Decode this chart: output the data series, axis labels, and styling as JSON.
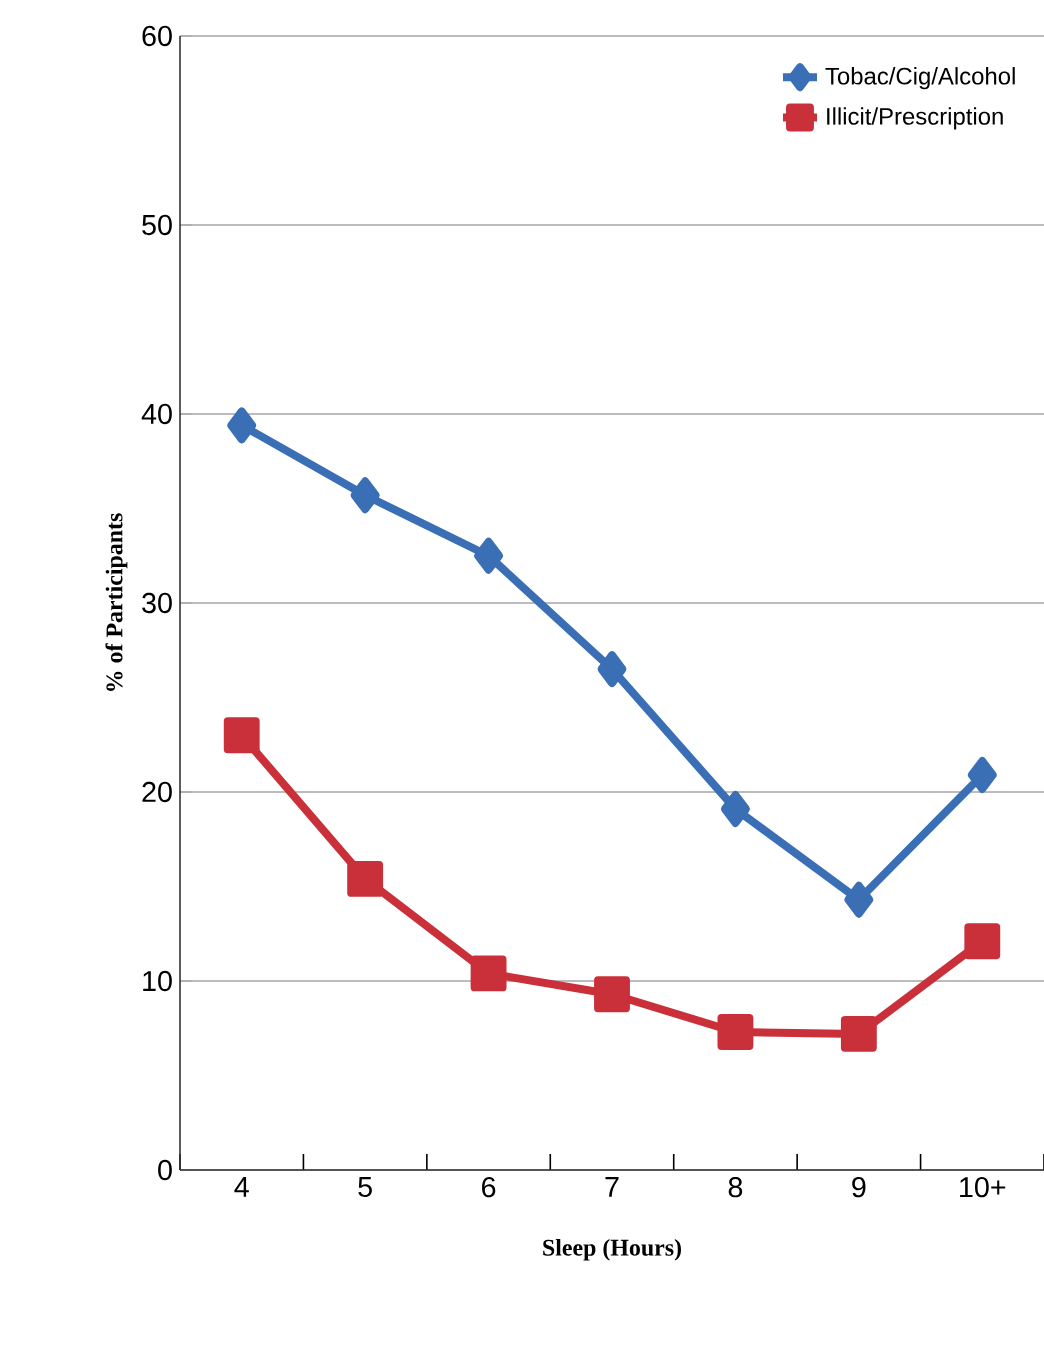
{
  "chart_data": {
    "type": "line",
    "xlabel": "Sleep (Hours)",
    "ylabel": "% of Participants",
    "categories": [
      "4",
      "5",
      "6",
      "7",
      "8",
      "9",
      "10+"
    ],
    "series": [
      {
        "name": "Tobac/Cig/Alcohol",
        "color": "#3a6fb5",
        "marker": "diamond",
        "values": [
          39.4,
          35.7,
          32.5,
          26.5,
          19.1,
          14.3,
          20.9
        ]
      },
      {
        "name": "Illicit/Prescription",
        "color": "#c9303a",
        "marker": "square",
        "values": [
          23,
          15.4,
          10.4,
          9.3,
          7.3,
          7.2,
          12.1
        ]
      }
    ],
    "ylim": [
      0,
      60
    ],
    "yticks": [
      0,
      10,
      20,
      30,
      40,
      50,
      60
    ],
    "grid": "y",
    "legend": "top right"
  }
}
